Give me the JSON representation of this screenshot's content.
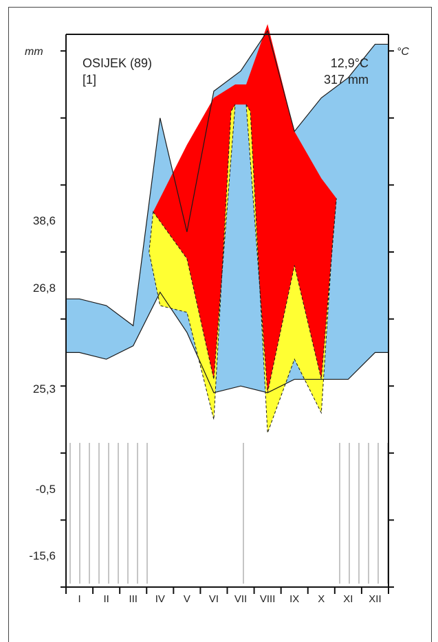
{
  "station": {
    "name": "OSIJEK (89)",
    "ref": "[1]",
    "mean_temp": "12,9°C",
    "annual_precip": "317 mm"
  },
  "axes": {
    "left_unit": "mm",
    "right_unit": "°C",
    "left_tick_labels": [
      "38,6",
      "26,8",
      "25,3",
      "-0,5",
      "-15,6"
    ]
  },
  "chart_data": {
    "type": "area",
    "title": "OSIJEK (89)",
    "months": [
      "I",
      "II",
      "III",
      "IV",
      "V",
      "VI",
      "VII",
      "VIII",
      "IX",
      "X",
      "XI",
      "XII"
    ],
    "y_tick_labels": [
      "38,6",
      "26,8",
      "25,3",
      "-0,5",
      "-15,6"
    ],
    "series": [
      {
        "name": "upper",
        "values": [
          4.3,
          4.2,
          3.9,
          7.0,
          5.3,
          7.4,
          7.7,
          8.3,
          6.8,
          7.3,
          7.6,
          8.1
        ],
        "note": ""
      },
      {
        "name": "lower",
        "values": [
          3.5,
          3.4,
          3.6,
          4.4,
          3.8,
          2.9,
          3.0,
          2.9,
          3.1,
          3.1,
          3.1,
          3.5
        ]
      }
    ],
    "colors": {
      "humid": "#8ec9ef",
      "arid": "#ff0000",
      "semi_arid": "#ffff33",
      "line": "#1a1a1a"
    }
  }
}
